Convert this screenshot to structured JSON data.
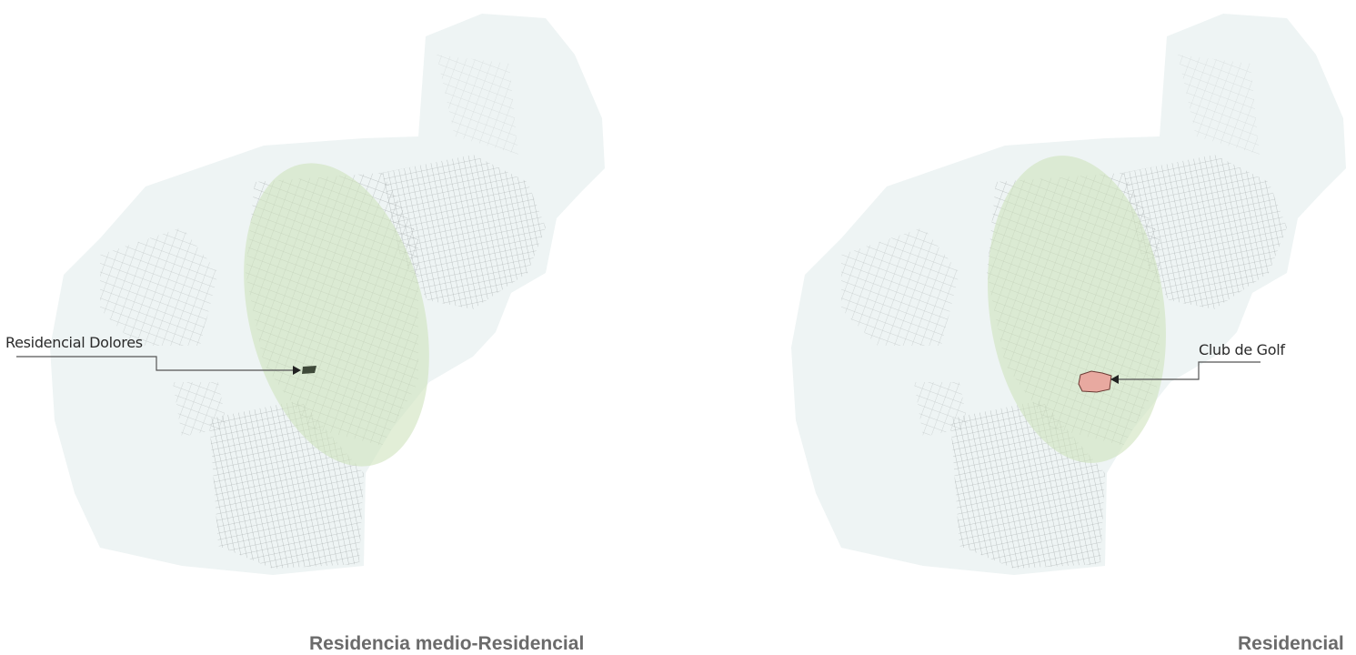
{
  "maps": [
    {
      "caption": "Residencia medio-Residencial",
      "annotation": "Residencial Dolores",
      "highlight_color": "#3f4a3a"
    },
    {
      "caption": "Residencial",
      "annotation": "Club de Golf",
      "highlight_color": "#e8a9a0"
    }
  ],
  "colors": {
    "city_area": "#eef4f4",
    "influence_zone": "#cfe3bd",
    "streets": "#9aa0a0",
    "leader_line": "#555555"
  }
}
